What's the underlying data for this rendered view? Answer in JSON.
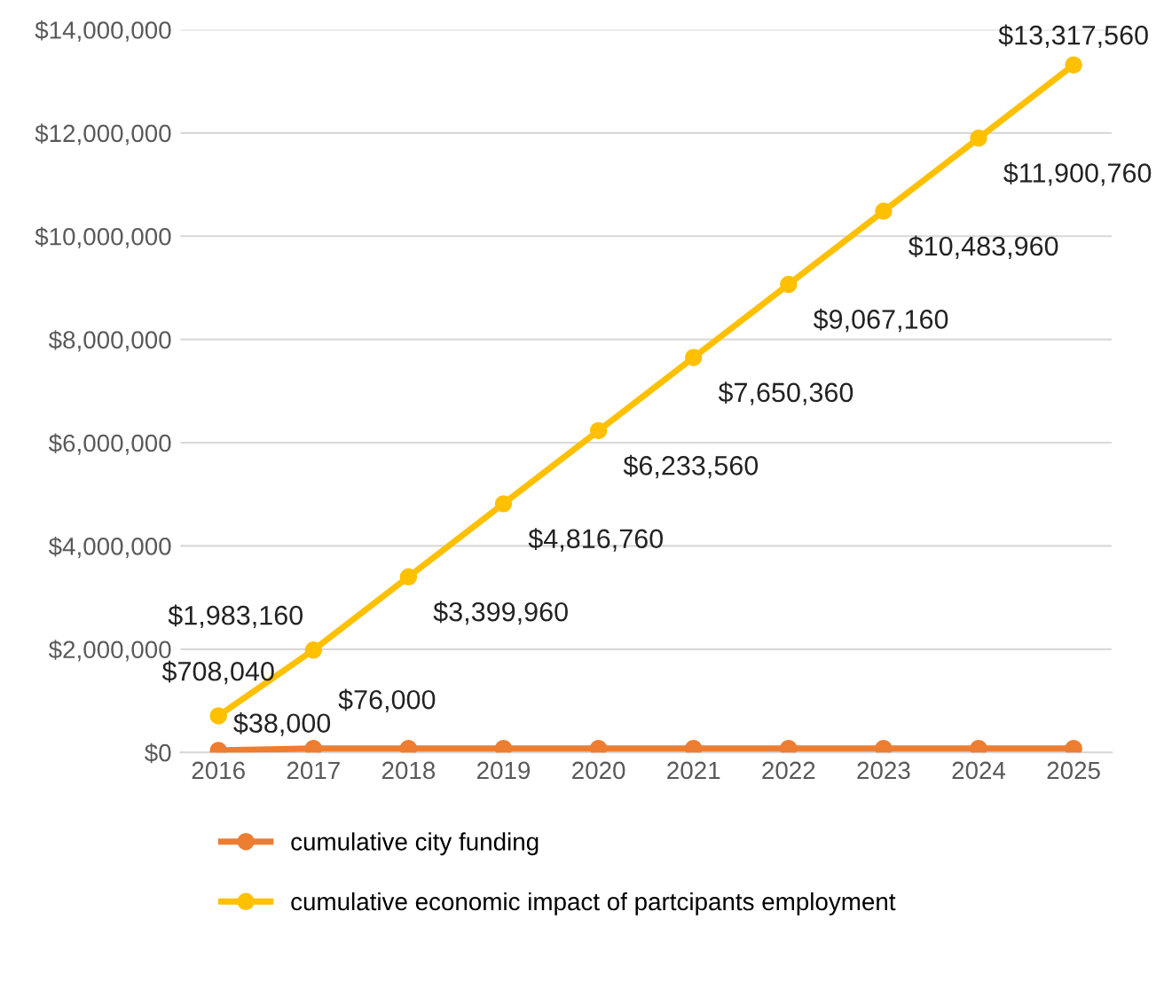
{
  "chart_data": {
    "type": "line",
    "x": [
      2016,
      2017,
      2018,
      2019,
      2020,
      2021,
      2022,
      2023,
      2024,
      2025
    ],
    "xlim": [
      2015.6,
      2025.4
    ],
    "xticks": [
      2016,
      2017,
      2018,
      2019,
      2020,
      2021,
      2022,
      2023,
      2024,
      2025
    ],
    "ylim": [
      0,
      14000000
    ],
    "yticks": [
      {
        "value": 0,
        "label": "$0"
      },
      {
        "value": 2000000,
        "label": "$2,000,000"
      },
      {
        "value": 4000000,
        "label": "$4,000,000"
      },
      {
        "value": 6000000,
        "label": "$6,000,000"
      },
      {
        "value": 8000000,
        "label": "$8,000,000"
      },
      {
        "value": 10000000,
        "label": "$10,000,000"
      },
      {
        "value": 12000000,
        "label": "$12,000,000"
      },
      {
        "value": 14000000,
        "label": "$14,000,000"
      }
    ],
    "grid": "y",
    "legend": "bottom",
    "marker": "circle",
    "line_style": "solid",
    "series": [
      {
        "name": "cumulative city funding",
        "color": "#ed7d31",
        "values": [
          38000,
          76000,
          76000,
          76000,
          76000,
          76000,
          76000,
          76000,
          76000,
          76000
        ],
        "value_labels": [
          "$38,000",
          "$76,000",
          null,
          null,
          null,
          null,
          null,
          null,
          null,
          null
        ]
      },
      {
        "name": "cumulative economic impact of partcipants employment",
        "color": "#ffc000",
        "values": [
          708040,
          1983160,
          3399960,
          4816760,
          6233560,
          7650360,
          9067160,
          10483960,
          11900760,
          13317560
        ],
        "value_labels": [
          "$708,040",
          "$1,983,160",
          "$3,399,960",
          "$4,816,760",
          "$6,233,560",
          "$7,650,360",
          "$9,067,160",
          "$10,483,960",
          "$11,900,760",
          "$13,317,560"
        ]
      }
    ]
  }
}
